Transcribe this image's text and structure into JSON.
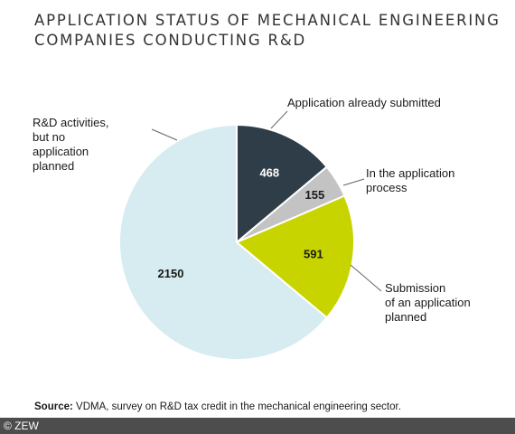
{
  "title_lines": [
    "APPLICATION STATUS OF MECHANICAL ENGINEERING",
    "COMPANIES CONDUCTING R&D"
  ],
  "chart_data": {
    "type": "pie",
    "title": "APPLICATION STATUS OF MECHANICAL ENGINEERING COMPANIES CONDUCTING R&D",
    "slices": [
      {
        "label": "Application already submitted",
        "label_lines": [
          "Application already submitted"
        ],
        "value": 468,
        "color": "#2f3d48",
        "value_color": "#ffffff"
      },
      {
        "label": "In the application process",
        "label_lines": [
          "In the application",
          "process"
        ],
        "value": 155,
        "color": "#c3c3c3",
        "value_color": "#1a1a1a"
      },
      {
        "label": "Submission of an application planned",
        "label_lines": [
          "Submission",
          "of an application",
          "planned"
        ],
        "value": 591,
        "color": "#c8d400",
        "value_color": "#1a1a1a"
      },
      {
        "label": "R&D activities, but no application planned",
        "label_lines": [
          "R&D activities,",
          "but no",
          "application",
          "planned"
        ],
        "value": 2150,
        "color": "#d6ecf0",
        "value_color": "#1a1a1a"
      }
    ],
    "legend": "none"
  },
  "source": {
    "prefix": "Source:",
    "text": " VDMA, survey on R&D tax credit in the mechanical engineering sector."
  },
  "footer": "© ZEW"
}
